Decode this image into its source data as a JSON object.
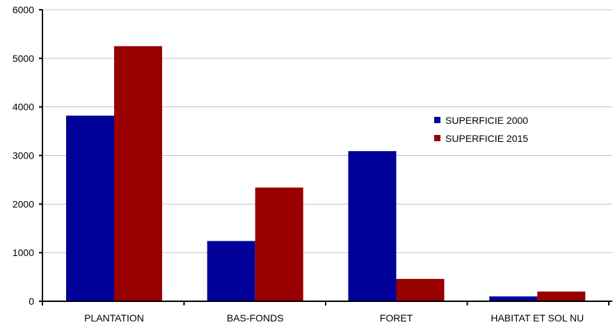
{
  "chart_data": {
    "type": "bar",
    "categories": [
      "PLANTATION",
      "BAS-FONDS",
      "FORET",
      "HABITAT ET SOL NU"
    ],
    "series": [
      {
        "name": "SUPERFICIE 2000",
        "values": [
          3820,
          1240,
          3090,
          100
        ],
        "color": "#000099"
      },
      {
        "name": "SUPERFICIE 2015",
        "values": [
          5250,
          2340,
          460,
          200
        ],
        "color": "#990000"
      }
    ],
    "ylim": [
      0,
      6000
    ],
    "yticks": [
      0,
      1000,
      2000,
      3000,
      4000,
      5000,
      6000
    ],
    "grid": true,
    "legend_position": "right",
    "title": "",
    "xlabel": "",
    "ylabel": ""
  }
}
